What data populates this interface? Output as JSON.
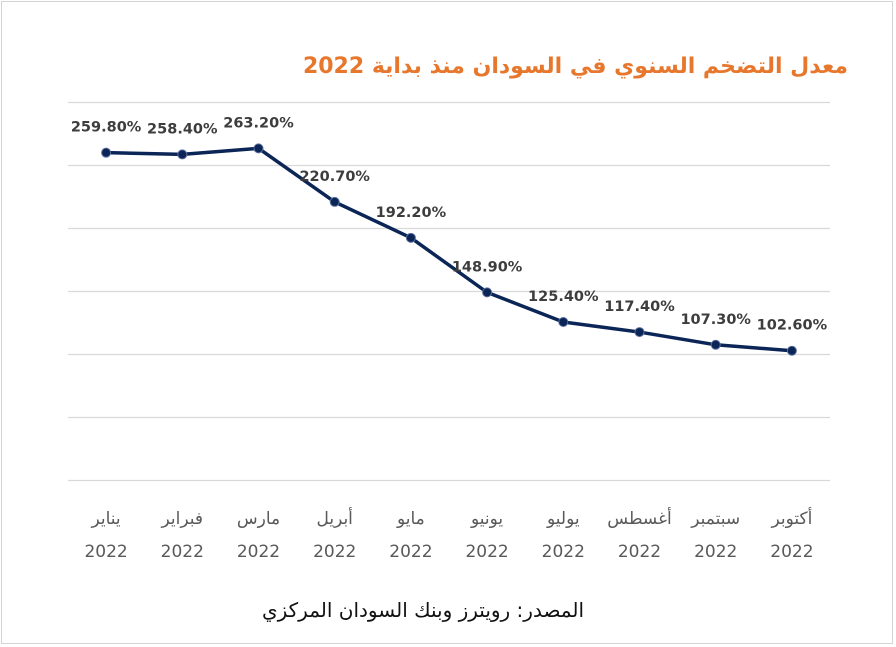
{
  "chart_data": {
    "type": "line",
    "title": "معدل التضخم السنوي في السودان  منذ بداية 2022",
    "categories": [
      [
        "يناير",
        "2022"
      ],
      [
        "فبراير",
        "2022"
      ],
      [
        "مارس",
        "2022"
      ],
      [
        "أبريل",
        "2022"
      ],
      [
        "مايو",
        "2022"
      ],
      [
        "يونيو",
        "2022"
      ],
      [
        "يوليو",
        "2022"
      ],
      [
        "أغسطس",
        "2022"
      ],
      [
        "سبتمبر",
        "2022"
      ],
      [
        "أكتوبر",
        "2022"
      ]
    ],
    "series": [
      {
        "values": [
          259.8,
          258.4,
          263.2,
          220.7,
          192.2,
          148.9,
          125.4,
          117.4,
          107.3,
          102.6
        ],
        "data_labels": [
          "259.80%",
          "258.40%",
          "263.20%",
          "220.70%",
          "192.20%",
          "148.90%",
          "125.40%",
          "117.40%",
          "107.30%",
          "102.60%"
        ]
      }
    ],
    "ylim": [
      0,
      300
    ],
    "y_gridlines": [
      0,
      50,
      100,
      150,
      200,
      250,
      300
    ],
    "y_axis_labels_visible": false,
    "grid": true,
    "colors": {
      "line": "#0b2557",
      "marker": "#0b2557",
      "grid": "#d9d9d9",
      "title": "#e8772e"
    }
  },
  "source_note": "المصدر: رويترز وبنك السودان المركزي"
}
